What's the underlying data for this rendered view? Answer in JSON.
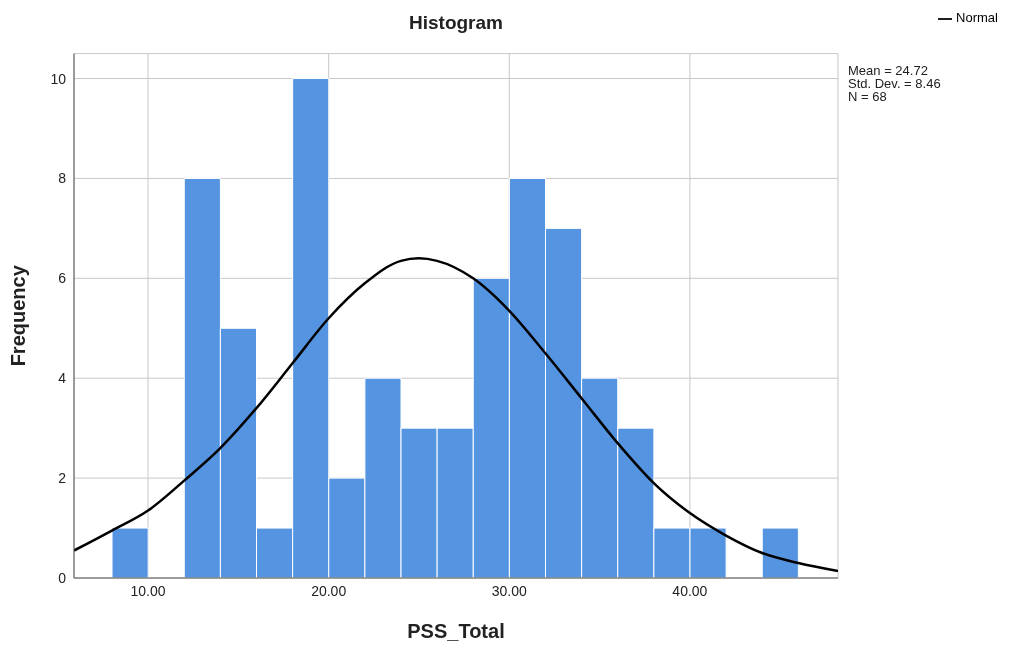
{
  "chart_data": {
    "type": "histogram",
    "title": "Histogram",
    "xlabel": "PSS_Total",
    "ylabel": "Frequency",
    "bins": [
      8,
      10,
      12,
      14,
      16,
      18,
      20,
      22,
      24,
      26,
      28,
      30,
      32,
      34,
      36,
      38,
      40,
      42,
      44,
      46
    ],
    "values": [
      1,
      0,
      8,
      5,
      1,
      10,
      2,
      4,
      3,
      3,
      6,
      8,
      7,
      4,
      3,
      1,
      1,
      0,
      1
    ],
    "color": "#5594e0",
    "series": [
      {
        "type": "line",
        "name": "Normal",
        "color": "#000000",
        "x": [
          5.9,
          8,
          10,
          12,
          14,
          16,
          18,
          20,
          22,
          24,
          25,
          26,
          28,
          30,
          32,
          34,
          36,
          38,
          40,
          42,
          44,
          46,
          48.2
        ],
        "values": [
          0.55,
          0.95,
          1.35,
          1.95,
          2.6,
          3.4,
          4.3,
          5.2,
          5.9,
          6.35,
          6.4,
          6.35,
          6.0,
          5.35,
          4.5,
          3.6,
          2.7,
          1.9,
          1.3,
          0.85,
          0.5,
          0.3,
          0.14
        ]
      }
    ],
    "xlim": [
      5.9,
      48.2
    ],
    "xticks": [
      {
        "value": 10,
        "label": "10.00"
      },
      {
        "value": 20,
        "label": "20.00"
      },
      {
        "value": 30,
        "label": "30.00"
      },
      {
        "value": 40,
        "label": "40.00"
      }
    ],
    "ylim": [
      0,
      10.5
    ],
    "yticks": [
      0,
      2,
      4,
      6,
      8,
      10
    ],
    "grid": true,
    "legend": "top right",
    "annotations": [
      "Mean = 24.72",
      "Std. Dev. = 8.46",
      "N = 68"
    ]
  }
}
